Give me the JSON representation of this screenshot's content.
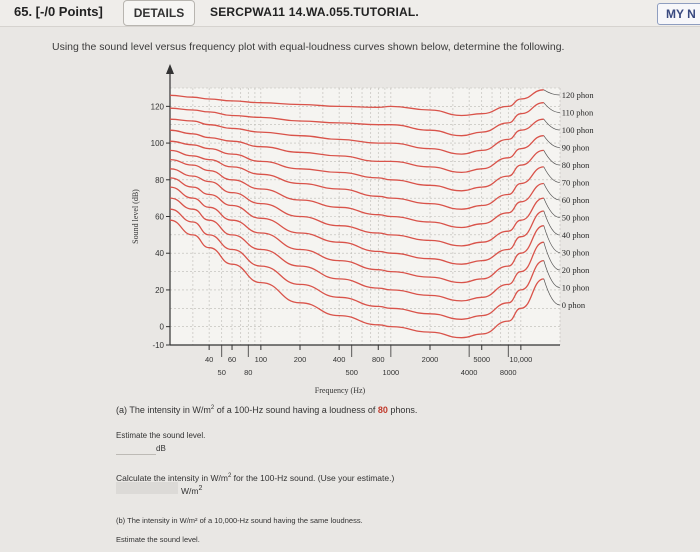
{
  "header": {
    "question_number": "65. [-/0 Points]",
    "details_button": "DETAILS",
    "question_code": "SERCPWA11 14.WA.055.TUTORIAL.",
    "my_notes": "MY N"
  },
  "instructions": "Using the sound level versus frequency plot with equal-loudness curves shown below, determine the following.",
  "chart_data": {
    "type": "line",
    "title": "",
    "xlabel": "Frequency (Hz)",
    "ylabel": "Sound level (dB)",
    "x_scale": "log",
    "xlim": [
      20,
      20000
    ],
    "ylim": [
      -10,
      130
    ],
    "yticks": [
      120,
      100,
      80,
      60,
      40,
      20,
      0,
      -10
    ],
    "xticks_upper": [
      "40",
      "60",
      "100",
      "200",
      "400",
      "800",
      "2000",
      "5000",
      "10,000"
    ],
    "xticks_lower": [
      "50",
      "80",
      "500",
      "1000",
      "4000",
      "8000"
    ],
    "x_points": [
      20,
      30,
      40,
      60,
      100,
      200,
      400,
      800,
      1000,
      2000,
      3500,
      5000,
      8000,
      10000,
      15000
    ],
    "series": [
      {
        "name": "120 phon",
        "values": [
          126,
          125,
          124,
          123,
          122,
          121,
          120,
          119.5,
          120,
          118,
          115,
          116,
          120,
          124,
          129
        ]
      },
      {
        "name": "110 phon",
        "values": [
          119,
          118,
          117,
          115,
          114,
          112,
          111,
          110,
          110,
          107,
          104,
          106,
          111,
          116,
          122
        ]
      },
      {
        "name": "100 phon",
        "values": [
          113,
          112,
          110,
          108,
          106,
          104,
          102,
          100,
          100,
          97,
          94,
          96,
          102,
          107,
          113
        ]
      },
      {
        "name": "90 phon",
        "values": [
          107,
          105,
          103,
          101,
          98,
          95,
          93,
          90,
          90,
          87,
          84,
          86,
          92,
          97,
          104
        ]
      },
      {
        "name": "80 phon",
        "values": [
          101,
          99,
          97,
          94,
          90,
          86,
          84,
          81,
          80,
          77,
          74,
          76,
          82,
          88,
          96
        ]
      },
      {
        "name": "70 phon",
        "values": [
          96,
          93,
          91,
          87,
          83,
          78,
          75,
          71,
          70,
          67,
          64,
          66,
          72,
          78,
          87
        ]
      },
      {
        "name": "60 phon",
        "values": [
          91,
          88,
          85,
          80,
          75,
          69,
          65,
          61,
          60,
          57,
          54,
          56,
          62,
          68,
          78
        ]
      },
      {
        "name": "50 phon",
        "values": [
          86,
          82,
          79,
          73,
          67,
          60,
          55,
          51,
          50,
          47,
          44,
          46,
          52,
          58,
          70
        ]
      },
      {
        "name": "40 phon",
        "values": [
          81,
          76,
          72,
          66,
          59,
          51,
          46,
          41,
          40,
          37,
          34,
          36,
          42,
          49,
          63
        ]
      },
      {
        "name": "30 phon",
        "values": [
          76,
          70,
          65,
          58,
          51,
          42,
          36,
          31,
          30,
          27,
          24,
          26,
          33,
          40,
          55
        ]
      },
      {
        "name": "20 phon",
        "values": [
          70,
          64,
          58,
          50,
          42,
          33,
          26,
          21,
          20,
          17,
          14,
          16,
          23,
          30,
          46
        ]
      },
      {
        "name": "10 phon",
        "values": [
          64,
          57,
          50,
          42,
          33,
          23,
          16,
          11,
          10,
          7,
          4,
          6,
          13,
          20,
          36
        ]
      },
      {
        "name": "0 phon",
        "values": [
          58,
          50,
          43,
          34,
          24,
          13,
          6,
          1,
          0,
          -3,
          -6,
          -4,
          3,
          10,
          26
        ]
      }
    ],
    "grid": true,
    "legend_placement": "right"
  },
  "part_a": {
    "prefix": "(a) The intensity in W/m",
    "sup": "2",
    "middle": " of a 100-Hz sound having a loudness of ",
    "loudness": "80",
    "suffix": " phons."
  },
  "estimate_label": "Estimate the sound level.",
  "estimate_unit": "dB",
  "calc_prefix": "Calculate the intensity in W/m",
  "calc_sup": "2",
  "calc_suffix": " for the 100-Hz sound. (Use your estimate.)",
  "calc_unit_base": "W/m",
  "calc_unit_sup": "2",
  "part_b": "(b) The intensity in W/m² of a 10,000-Hz sound having the same loudness.",
  "estimate_label_b": "Estimate the sound level."
}
